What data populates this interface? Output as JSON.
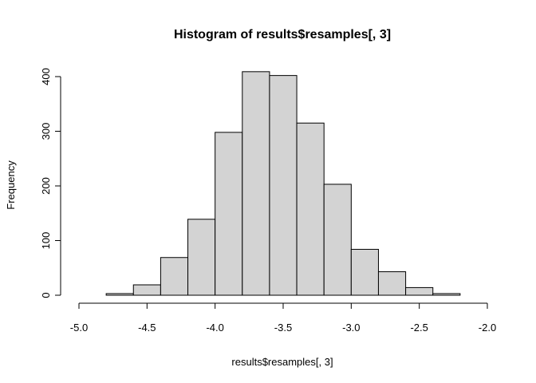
{
  "chart_data": {
    "type": "bar",
    "subtype": "histogram",
    "title": "Histogram of results$resamples[, 3]",
    "xlabel": "results$resamples[, 3]",
    "ylabel": "Frequency",
    "xlim": [
      -5.0,
      -2.0
    ],
    "ylim": [
      0,
      400
    ],
    "x_ticks": [
      "-5.0",
      "-4.5",
      "-4.0",
      "-3.5",
      "-3.0",
      "-2.5",
      "-2.0"
    ],
    "y_ticks": [
      "0",
      "100",
      "200",
      "300",
      "400"
    ],
    "bins": [
      {
        "from": -5.0,
        "to": -4.8,
        "count": 0
      },
      {
        "from": -4.8,
        "to": -4.6,
        "count": 3
      },
      {
        "from": -4.6,
        "to": -4.4,
        "count": 19
      },
      {
        "from": -4.4,
        "to": -4.2,
        "count": 69
      },
      {
        "from": -4.2,
        "to": -4.0,
        "count": 139
      },
      {
        "from": -4.0,
        "to": -3.8,
        "count": 298
      },
      {
        "from": -3.8,
        "to": -3.6,
        "count": 409
      },
      {
        "from": -3.6,
        "to": -3.4,
        "count": 402
      },
      {
        "from": -3.4,
        "to": -3.2,
        "count": 315
      },
      {
        "from": -3.2,
        "to": -3.0,
        "count": 203
      },
      {
        "from": -3.0,
        "to": -2.8,
        "count": 84
      },
      {
        "from": -2.8,
        "to": -2.6,
        "count": 43
      },
      {
        "from": -2.6,
        "to": -2.4,
        "count": 14
      },
      {
        "from": -2.4,
        "to": -2.2,
        "count": 3
      },
      {
        "from": -2.2,
        "to": -2.0,
        "count": 0
      }
    ],
    "bar_fill": "#d3d3d3",
    "bar_stroke": "#000000",
    "grid": false,
    "legend": "none"
  }
}
